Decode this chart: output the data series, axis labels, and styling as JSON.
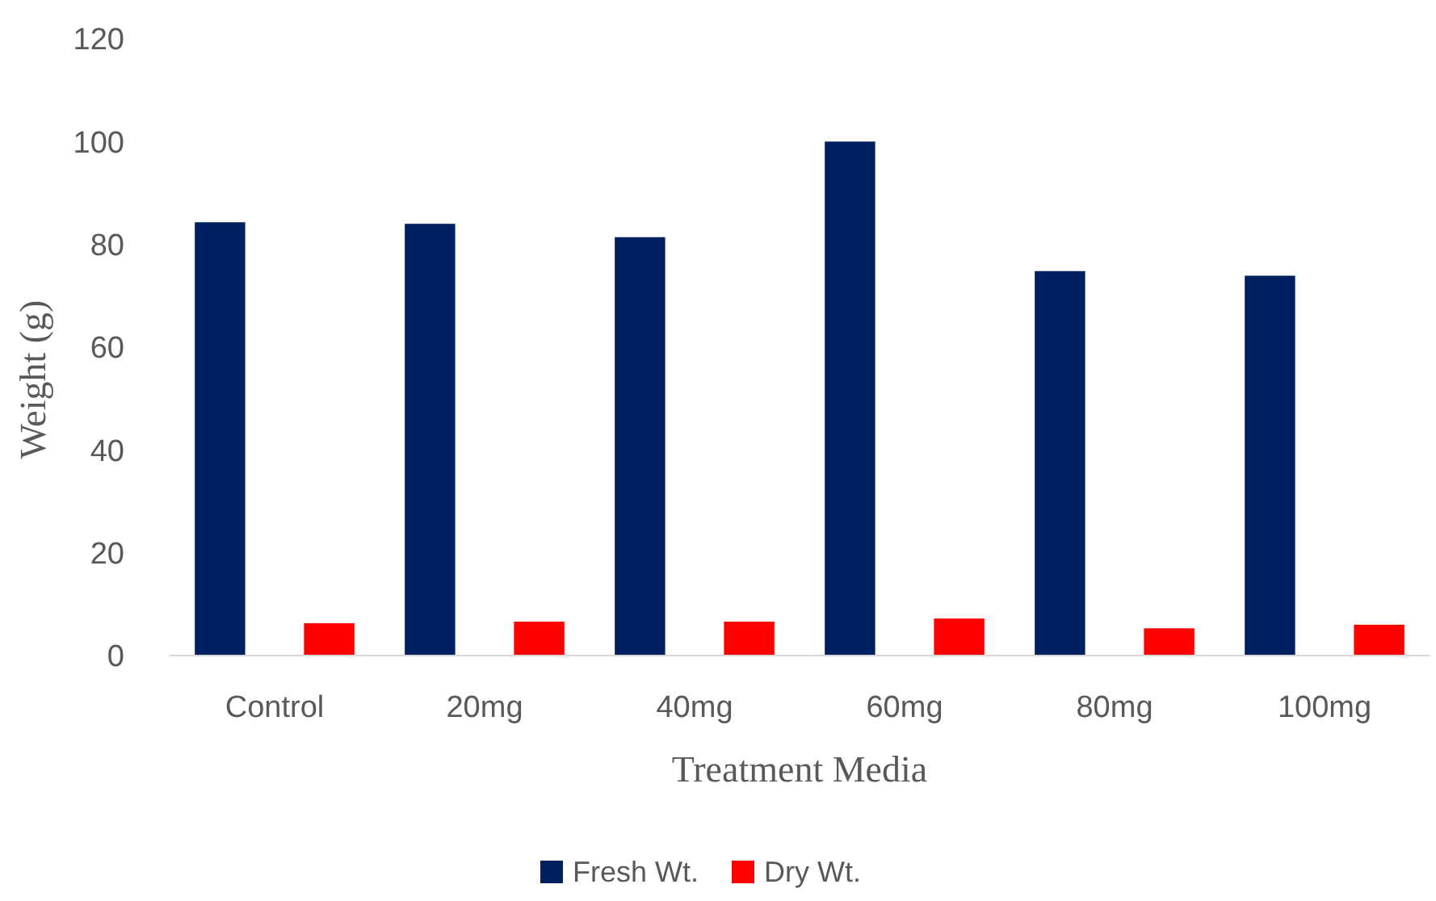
{
  "chart_data": {
    "type": "bar",
    "xlabel": "Treatment Media",
    "ylabel": "Weight (g)",
    "categories": [
      "Control",
      "20mg",
      "40mg",
      "60mg",
      "80mg",
      "100mg"
    ],
    "series": [
      {
        "name": "Fresh Wt.",
        "color": "#002060",
        "values": [
          84.3,
          84,
          81.4,
          100,
          74.8,
          73.9
        ]
      },
      {
        "name": "Dry Wt.",
        "color": "#ff0000",
        "values": [
          6.3,
          6.6,
          6.6,
          7.2,
          5.3,
          6
        ]
      }
    ],
    "ylim": [
      0,
      120
    ],
    "yticks": [
      0,
      20,
      40,
      60,
      80,
      100,
      120
    ],
    "grid": false,
    "legend": "bottom"
  }
}
